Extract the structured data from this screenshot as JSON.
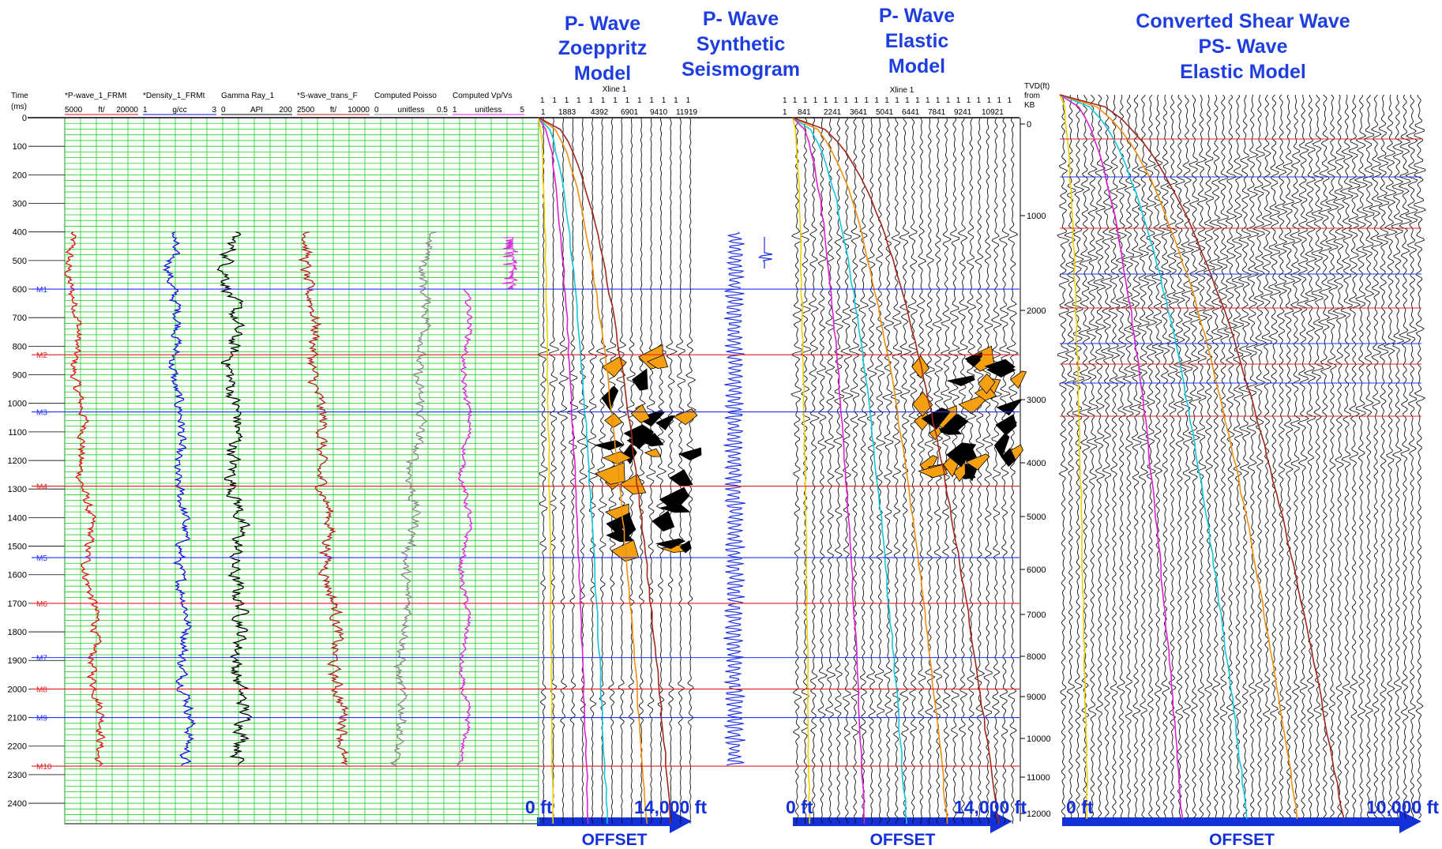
{
  "titles": [
    {
      "lines": [
        "P- Wave",
        "Zoeppritz",
        "Model"
      ]
    },
    {
      "lines": [
        "P- Wave",
        "Synthetic",
        "Seismogram"
      ]
    },
    {
      "lines": [
        "P- Wave",
        "Elastic",
        "Model"
      ]
    },
    {
      "lines": [
        "Converted Shear Wave",
        "PS- Wave",
        "Elastic Model"
      ]
    }
  ],
  "well_log": {
    "time_label": [
      "Time",
      "(ms)"
    ],
    "time_ticks": [
      0,
      100,
      200,
      300,
      400,
      500,
      600,
      700,
      800,
      900,
      1000,
      1100,
      1200,
      1300,
      1400,
      1500,
      1600,
      1700,
      1800,
      1900,
      2000,
      2100,
      2200,
      2300,
      2400
    ],
    "tracks": [
      {
        "name": "*P-wave_1_FRMt",
        "min": 5000,
        "unit": "ft/",
        "max": 20000
      },
      {
        "name": "*Density_1_FRMt",
        "min": 1,
        "unit": "g/cc",
        "max": 3
      },
      {
        "name": "Gamma Ray_1",
        "min": 0,
        "unit": "API",
        "max": 200
      },
      {
        "name": "*S-wave_trans_F",
        "min": 2500,
        "unit": "ft/",
        "max": 10000
      },
      {
        "name": "Computed Poisso",
        "min": 0,
        "unit": "unitless",
        "max": 0.5
      },
      {
        "name": "Computed Vp/Vs",
        "min": 1,
        "unit": "unitless",
        "max": 5
      }
    ],
    "markers": [
      "M1",
      "M2",
      "M3",
      "M4",
      "M5",
      "M6",
      "M7",
      "M8",
      "M9",
      "M10"
    ]
  },
  "zoeppritz": {
    "header": "Xline 1",
    "trace_row": "1 1 1 1 1 1 1 1 1 1 1 1 1",
    "trace_numbers": [
      1,
      1883,
      4392,
      6901,
      9410,
      11919
    ]
  },
  "elastic": {
    "header": "Xline 1",
    "trace_row": "1 1 1 1 1 1 1 1 1 1 1 1 1 1 1 1 1 1 1 1 1 1 1",
    "trace_numbers": [
      1,
      841,
      2241,
      3641,
      5041,
      6441,
      7841,
      9241,
      10921
    ]
  },
  "tvd": {
    "label": [
      "TVD(ft)",
      "from",
      "KB"
    ],
    "ticks": [
      0,
      1000,
      2000,
      3000,
      4000,
      5000,
      6000,
      7000,
      8000,
      9000,
      10000,
      11000,
      12000
    ]
  },
  "offsets": [
    {
      "start": "0 ft",
      "end": "14,000 ft",
      "label": "OFFSET"
    },
    {
      "start": "0 ft",
      "end": "14,000 ft",
      "label": "OFFSET"
    },
    {
      "start": "0 ft",
      "end": "10,000 ft",
      "label": "OFFSET"
    }
  ]
}
